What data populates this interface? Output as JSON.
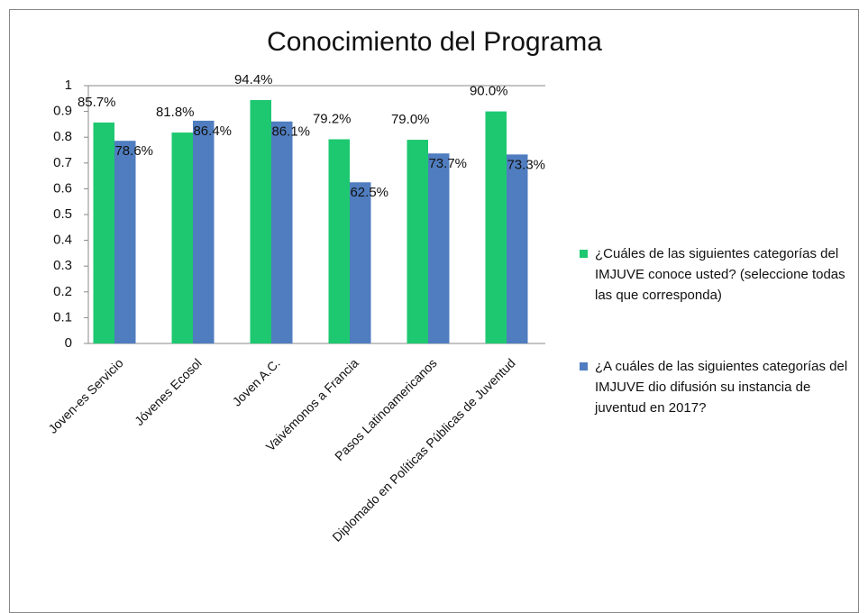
{
  "chart_data": {
    "type": "bar",
    "title": "Conocimiento del Programa",
    "categories": [
      "Joven-es Servicio",
      "Jóvenes Ecosol",
      "Joven A.C.",
      "Vaivémonos a Francia",
      "Pasos Latinoamericanos",
      "Diplomado en Políticas  Públicas  de Juventud"
    ],
    "series": [
      {
        "name": "¿Cuáles de las siguientes categorías del IMJUVE conoce usted? (seleccione  todas las que corresponda)",
        "color": "#1ec870",
        "values": [
          0.857,
          0.818,
          0.944,
          0.792,
          0.79,
          0.9
        ],
        "value_labels": [
          "85.7%",
          "81.8%",
          "94.4%",
          "79.2%",
          "79.0%",
          "90.0%"
        ]
      },
      {
        "name": "¿A cuáles de las siguientes categorías del IMJUVE dio difusión su instancia  de juventud  en 2017?",
        "color": "#4f7dbf",
        "values": [
          0.786,
          0.864,
          0.861,
          0.625,
          0.737,
          0.733
        ],
        "value_labels": [
          "78.6%",
          "86.4%",
          "86.1%",
          "62.5%",
          "73.7%",
          "73.3%"
        ]
      }
    ],
    "ylim": [
      0,
      1
    ],
    "yticks": [
      0,
      0.1,
      0.2,
      0.3,
      0.4,
      0.5,
      0.6,
      0.7,
      0.8,
      0.9,
      1
    ],
    "grid": false,
    "legend": "right"
  }
}
